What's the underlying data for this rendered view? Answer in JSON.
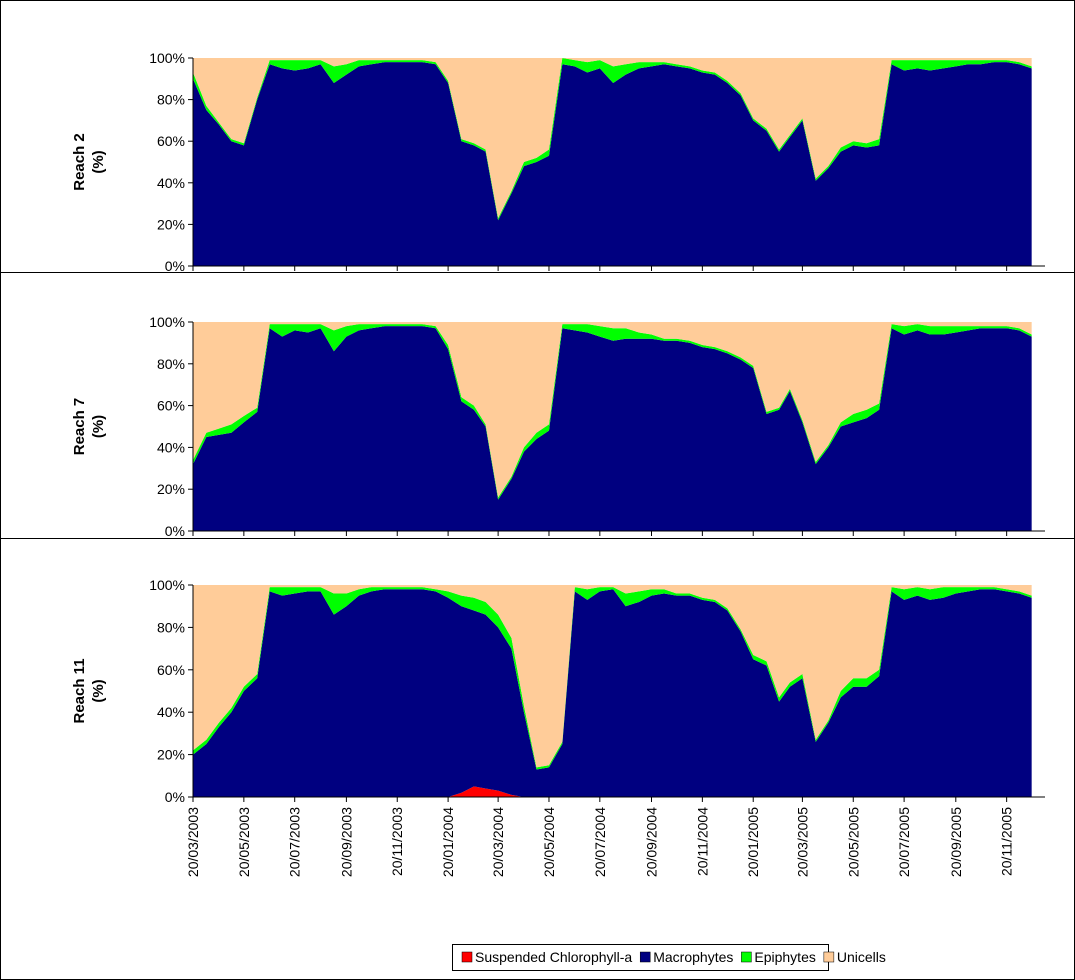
{
  "chart_data": {
    "type": "area",
    "stacking": "percent",
    "x": [
      "20/03/2003",
      "05/04/2003",
      "20/04/2003",
      "05/05/2003",
      "20/05/2003",
      "05/06/2003",
      "20/06/2003",
      "05/07/2003",
      "20/07/2003",
      "05/08/2003",
      "20/08/2003",
      "05/09/2003",
      "20/09/2003",
      "05/10/2003",
      "20/10/2003",
      "05/11/2003",
      "20/11/2003",
      "05/12/2003",
      "20/12/2003",
      "05/01/2004",
      "20/01/2004",
      "05/02/2004",
      "20/02/2004",
      "05/03/2004",
      "20/03/2004",
      "05/04/2004",
      "20/04/2004",
      "05/05/2004",
      "20/05/2004",
      "05/06/2004",
      "20/06/2004",
      "05/07/2004",
      "20/07/2004",
      "05/08/2004",
      "20/08/2004",
      "05/09/2004",
      "20/09/2004",
      "05/10/2004",
      "20/10/2004",
      "05/11/2004",
      "20/11/2004",
      "05/12/2004",
      "20/12/2004",
      "05/01/2005",
      "20/01/2005",
      "05/02/2005",
      "20/02/2005",
      "05/03/2005",
      "20/03/2005",
      "05/04/2005",
      "20/04/2005",
      "05/05/2005",
      "20/05/2005",
      "05/06/2005",
      "20/06/2005",
      "05/07/2005",
      "20/07/2005",
      "05/08/2005",
      "20/08/2005",
      "05/09/2005",
      "20/09/2005",
      "05/10/2005",
      "20/10/2005",
      "05/11/2005",
      "20/11/2005",
      "05/12/2005",
      "20/12/2005"
    ],
    "xlim": [
      "20/03/2003",
      "05/01/2006"
    ],
    "xticks": [
      "20/03/2003",
      "20/05/2003",
      "20/07/2003",
      "20/09/2003",
      "20/11/2003",
      "20/01/2004",
      "20/03/2004",
      "20/05/2004",
      "20/07/2004",
      "20/09/2004",
      "20/11/2004",
      "20/01/2005",
      "20/03/2005",
      "20/05/2005",
      "20/07/2005",
      "20/09/2005",
      "20/11/2005"
    ],
    "ylim": [
      0,
      100
    ],
    "yticks": [
      {
        "value": 0,
        "label": "0%"
      },
      {
        "value": 20,
        "label": "20%"
      },
      {
        "value": 40,
        "label": "40%"
      },
      {
        "value": 60,
        "label": "60%"
      },
      {
        "value": 80,
        "label": "80%"
      },
      {
        "value": 100,
        "label": "100%"
      }
    ],
    "series": [
      {
        "name": "Suspended Chlorophyll-a",
        "color": "#ff0000"
      },
      {
        "name": "Macrophytes",
        "color": "#000080"
      },
      {
        "name": "Epiphytes",
        "color": "#00ff00"
      },
      {
        "name": "Unicells",
        "color": "#ffcc99"
      }
    ],
    "panels": [
      {
        "ylabel": "Reach 2",
        "yunit": "(%)",
        "series": [
          {
            "values": [
              0,
              0,
              0,
              0,
              0,
              0,
              0,
              0,
              0,
              0,
              0,
              0,
              0,
              0,
              0,
              0,
              0,
              0,
              0,
              0,
              0,
              0,
              0,
              0,
              0,
              0,
              0,
              0,
              0,
              0,
              0,
              0,
              0,
              0,
              0,
              0,
              0,
              0,
              0,
              0,
              0,
              0,
              0,
              0,
              0,
              0,
              0,
              0,
              0,
              0,
              0,
              0,
              0,
              0,
              0,
              0,
              0,
              0,
              0,
              0,
              0,
              0,
              0,
              0,
              0,
              0,
              0
            ]
          },
          {
            "values": [
              90,
              75,
              68,
              60,
              58,
              80,
              97,
              95,
              94,
              95,
              97,
              88,
              92,
              96,
              97,
              98,
              98,
              98,
              98,
              97,
              88,
              60,
              58,
              55,
              22,
              35,
              48,
              50,
              53,
              97,
              96,
              93,
              95,
              88,
              92,
              95,
              96,
              97,
              96,
              95,
              93,
              92,
              88,
              82,
              70,
              65,
              55,
              62,
              70,
              41,
              47,
              55,
              58,
              57,
              58,
              97,
              94,
              95,
              94,
              95,
              96,
              97,
              97,
              98,
              98,
              97,
              95
            ]
          },
          {
            "values": [
              3,
              2,
              1,
              1,
              1,
              1,
              2,
              4,
              5,
              4,
              2,
              8,
              5,
              3,
              2,
              1,
              1,
              1,
              1,
              1,
              1,
              1,
              1,
              1,
              1,
              1,
              2,
              2,
              3,
              3,
              3,
              5,
              4,
              8,
              5,
              3,
              2,
              1,
              1,
              1,
              1,
              1,
              1,
              1,
              1,
              1,
              1,
              1,
              1,
              1,
              1,
              2,
              2,
              2,
              3,
              2,
              5,
              4,
              5,
              4,
              3,
              2,
              2,
              1,
              1,
              1,
              1
            ]
          },
          {
            "values": [
              7,
              23,
              31,
              39,
              41,
              19,
              1,
              1,
              1,
              1,
              1,
              4,
              3,
              1,
              1,
              1,
              1,
              1,
              1,
              2,
              11,
              39,
              41,
              44,
              77,
              64,
              50,
              48,
              44,
              0,
              1,
              2,
              1,
              4,
              3,
              2,
              2,
              2,
              3,
              4,
              6,
              7,
              11,
              17,
              29,
              34,
              44,
              37,
              29,
              58,
              52,
              43,
              40,
              41,
              39,
              1,
              1,
              1,
              1,
              1,
              1,
              1,
              1,
              1,
              1,
              2,
              4
            ]
          }
        ]
      },
      {
        "ylabel": "Reach 7",
        "yunit": "(%)",
        "series": [
          {
            "values": [
              0,
              0,
              0,
              0,
              0,
              0,
              0,
              0,
              0,
              0,
              0,
              0,
              0,
              0,
              0,
              0,
              0,
              0,
              0,
              0,
              0,
              0,
              0,
              0,
              0,
              0,
              0,
              0,
              0,
              0,
              0,
              0,
              0,
              0,
              0,
              0,
              0,
              0,
              0,
              0,
              0,
              0,
              0,
              0,
              0,
              0,
              0,
              0,
              0,
              0,
              0,
              0,
              0,
              0,
              0,
              0,
              0,
              0,
              0,
              0,
              0,
              0,
              0,
              0,
              0,
              0,
              0
            ]
          },
          {
            "values": [
              32,
              45,
              46,
              47,
              52,
              57,
              97,
              93,
              96,
              95,
              97,
              86,
              93,
              96,
              97,
              98,
              98,
              98,
              98,
              97,
              87,
              62,
              58,
              50,
              15,
              25,
              38,
              44,
              48,
              97,
              96,
              95,
              93,
              91,
              92,
              92,
              92,
              91,
              91,
              90,
              88,
              87,
              85,
              82,
              78,
              56,
              58,
              67,
              52,
              32,
              40,
              50,
              52,
              54,
              58,
              97,
              94,
              96,
              94,
              94,
              95,
              96,
              97,
              97,
              97,
              96,
              93
            ]
          },
          {
            "values": [
              2,
              2,
              3,
              4,
              3,
              2,
              2,
              6,
              3,
              4,
              2,
              10,
              5,
              3,
              2,
              1,
              1,
              1,
              1,
              1,
              2,
              2,
              2,
              1,
              1,
              1,
              2,
              3,
              3,
              2,
              3,
              4,
              5,
              6,
              5,
              3,
              2,
              1,
              1,
              1,
              1,
              1,
              1,
              1,
              1,
              1,
              1,
              1,
              1,
              1,
              1,
              2,
              4,
              4,
              3,
              2,
              4,
              3,
              4,
              4,
              3,
              2,
              1,
              1,
              1,
              1,
              1
            ]
          },
          {
            "values": [
              66,
              53,
              51,
              49,
              45,
              41,
              1,
              1,
              1,
              1,
              1,
              4,
              2,
              1,
              1,
              1,
              1,
              1,
              1,
              2,
              11,
              36,
              40,
              49,
              84,
              74,
              60,
              53,
              49,
              1,
              1,
              1,
              2,
              3,
              3,
              5,
              6,
              8,
              8,
              9,
              11,
              12,
              14,
              17,
              21,
              43,
              41,
              32,
              47,
              67,
              59,
              48,
              44,
              42,
              39,
              1,
              2,
              1,
              2,
              2,
              2,
              2,
              2,
              2,
              2,
              3,
              6
            ]
          }
        ]
      },
      {
        "ylabel": "Reach 11",
        "yunit": "(%)",
        "series": [
          {
            "values": [
              0,
              0,
              0,
              0,
              0,
              0,
              0,
              0,
              0,
              0,
              0,
              0,
              0,
              0,
              0,
              0,
              0,
              0,
              0,
              0,
              0,
              2,
              5,
              4,
              3,
              1,
              0,
              0,
              0,
              0,
              0,
              0,
              0,
              0,
              0,
              0,
              0,
              0,
              0,
              0,
              0,
              0,
              0,
              0,
              0,
              0,
              0,
              0,
              0,
              0,
              0,
              0,
              0,
              0,
              0,
              0,
              0,
              0,
              0,
              0,
              0,
              0,
              0,
              0,
              0,
              0,
              0
            ]
          },
          {
            "values": [
              20,
              25,
              33,
              40,
              50,
              56,
              97,
              95,
              96,
              97,
              97,
              86,
              90,
              95,
              97,
              98,
              98,
              98,
              98,
              97,
              94,
              88,
              83,
              82,
              77,
              69,
              40,
              13,
              14,
              25,
              97,
              93,
              97,
              98,
              90,
              92,
              95,
              96,
              95,
              95,
              93,
              92,
              88,
              78,
              65,
              62,
              45,
              52,
              56,
              26,
              35,
              47,
              52,
              52,
              57,
              97,
              93,
              95,
              93,
              94,
              96,
              97,
              98,
              98,
              97,
              96,
              94
            ]
          },
          {
            "values": [
              2,
              2,
              2,
              2,
              2,
              2,
              2,
              4,
              3,
              2,
              2,
              10,
              6,
              3,
              2,
              1,
              1,
              1,
              1,
              1,
              3,
              5,
              6,
              6,
              6,
              5,
              3,
              1,
              1,
              1,
              2,
              5,
              2,
              1,
              6,
              5,
              3,
              2,
              1,
              1,
              1,
              1,
              1,
              1,
              2,
              2,
              2,
              2,
              2,
              1,
              1,
              3,
              4,
              4,
              3,
              2,
              5,
              4,
              5,
              5,
              3,
              2,
              1,
              1,
              1,
              1,
              1
            ]
          },
          {
            "values": [
              78,
              73,
              65,
              58,
              48,
              42,
              1,
              1,
              1,
              1,
              1,
              4,
              4,
              2,
              1,
              1,
              1,
              1,
              1,
              2,
              3,
              5,
              6,
              8,
              14,
              25,
              57,
              86,
              85,
              74,
              1,
              2,
              1,
              1,
              4,
              3,
              2,
              2,
              4,
              4,
              6,
              7,
              11,
              21,
              33,
              36,
              53,
              46,
              42,
              73,
              64,
              50,
              44,
              44,
              40,
              1,
              2,
              1,
              2,
              1,
              1,
              1,
              1,
              1,
              2,
              3,
              5
            ]
          }
        ]
      }
    ]
  }
}
